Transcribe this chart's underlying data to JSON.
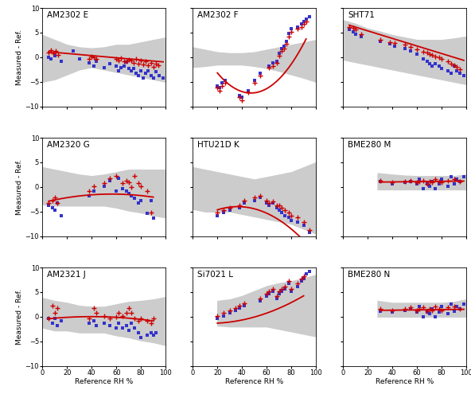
{
  "titles": [
    "AM2302 E",
    "AM2302 F",
    "SHT71",
    "AM2320 G",
    "HTU21D K",
    "BME280 M",
    "AM2321 J",
    "Si7021 L",
    "BME280 N"
  ],
  "xlabel": "Reference RH %",
  "ylabel": "Measured - Ref.",
  "ylim": [
    -10,
    10
  ],
  "xlim": [
    0,
    100
  ],
  "curve_color": "#cc0000",
  "scatter_red_color": "#cc0000",
  "scatter_blue_color": "#3333cc",
  "band_color": "#cccccc",
  "yticks": [
    -10,
    -5,
    0,
    5,
    10
  ],
  "xticks": [
    0,
    20,
    40,
    60,
    80,
    100
  ],
  "panels": [
    {
      "name": "AM2302 E",
      "curve_x0": 5,
      "curve_x1": 98,
      "curve_coeffs": [
        -0.022,
        1.2
      ],
      "band_x": [
        0,
        10,
        20,
        30,
        40,
        50,
        60,
        70,
        80,
        90,
        100
      ],
      "band_upper": [
        4.5,
        3.5,
        2.5,
        2.0,
        1.8,
        2.0,
        2.5,
        2.5,
        3.0,
        3.5,
        4.0
      ],
      "band_lower": [
        -5.0,
        -4.5,
        -3.5,
        -2.5,
        -2.0,
        -2.5,
        -3.0,
        -3.5,
        -4.0,
        -4.5,
        -5.0
      ],
      "red_x": [
        5,
        7,
        9,
        11,
        13,
        38,
        40,
        42,
        44,
        60,
        62,
        64,
        66,
        68,
        70,
        72,
        74,
        76,
        78,
        80,
        82,
        84,
        86,
        88,
        90,
        92,
        94
      ],
      "red_y": [
        1.0,
        1.5,
        0.8,
        1.2,
        0.5,
        -0.3,
        0.2,
        -0.1,
        -0.3,
        -0.4,
        -0.6,
        -0.2,
        -0.8,
        -0.9,
        -0.5,
        -0.7,
        -1.1,
        -0.4,
        -1.3,
        -0.7,
        -1.5,
        -0.8,
        -1.7,
        -1.1,
        -1.9,
        -1.4,
        -1.7
      ],
      "blue_x": [
        5,
        7,
        10,
        15,
        25,
        30,
        38,
        42,
        44,
        50,
        55,
        60,
        62,
        64,
        66,
        68,
        70,
        72,
        74,
        76,
        78,
        80,
        82,
        84,
        86,
        88,
        90,
        92,
        95,
        98
      ],
      "blue_y": [
        0.0,
        -0.3,
        0.3,
        -0.8,
        1.2,
        -0.4,
        -1.2,
        -1.8,
        -0.8,
        -2.2,
        -1.3,
        -1.8,
        -2.8,
        -2.2,
        -1.8,
        -1.0,
        -2.3,
        -2.7,
        -2.3,
        -3.2,
        -3.8,
        -2.8,
        -4.2,
        -3.2,
        -2.8,
        -3.8,
        -4.3,
        -2.9,
        -3.7,
        -4.3
      ]
    },
    {
      "name": "AM2302 F",
      "curve_x0": 20,
      "curve_x1": 92,
      "curve_coeffs": [
        0.0055,
        -0.52,
        5.0
      ],
      "band_x": [
        0,
        10,
        20,
        30,
        40,
        50,
        60,
        70,
        80,
        90,
        100
      ],
      "band_upper": [
        2.0,
        1.5,
        1.0,
        0.8,
        0.8,
        1.0,
        1.5,
        2.0,
        2.5,
        3.0,
        3.5
      ],
      "band_lower": [
        -2.0,
        -1.8,
        -1.5,
        -1.5,
        -1.5,
        -1.8,
        -2.2,
        -2.8,
        -3.5,
        -4.2,
        -5.0
      ],
      "red_x": [
        20,
        22,
        24,
        26,
        38,
        40,
        45,
        50,
        55,
        62,
        65,
        68,
        70,
        72,
        74,
        76,
        78,
        80,
        85,
        88,
        90,
        92
      ],
      "red_y": [
        -6.2,
        -6.8,
        -5.8,
        -5.2,
        -8.2,
        -8.8,
        -7.2,
        -5.2,
        -3.8,
        -2.2,
        -1.8,
        -1.2,
        0.3,
        1.3,
        1.8,
        2.8,
        4.2,
        5.2,
        5.8,
        6.2,
        6.8,
        7.2
      ],
      "blue_x": [
        20,
        22,
        24,
        26,
        38,
        40,
        45,
        50,
        55,
        62,
        65,
        68,
        70,
        72,
        74,
        76,
        78,
        80,
        85,
        88,
        90,
        92,
        95
      ],
      "blue_y": [
        -5.8,
        -6.2,
        -5.2,
        -4.8,
        -7.8,
        -8.2,
        -6.8,
        -4.8,
        -3.2,
        -1.8,
        -1.2,
        -0.8,
        0.8,
        1.8,
        2.2,
        3.2,
        4.8,
        5.8,
        6.2,
        6.8,
        7.2,
        7.8,
        8.2
      ]
    },
    {
      "name": "SHT71",
      "curve_x0": 5,
      "curve_x1": 98,
      "curve_coeffs": [
        -0.077,
        6.9
      ],
      "band_x": [
        0,
        10,
        20,
        30,
        40,
        50,
        60,
        70,
        80,
        90,
        100
      ],
      "band_upper": [
        7.5,
        6.8,
        5.8,
        5.2,
        4.5,
        4.0,
        3.5,
        3.5,
        3.5,
        3.8,
        4.2
      ],
      "band_lower": [
        -0.5,
        -1.0,
        -1.5,
        -2.0,
        -2.5,
        -3.0,
        -3.5,
        -4.0,
        -4.5,
        -5.0,
        -5.5
      ],
      "red_x": [
        5,
        8,
        10,
        15,
        30,
        38,
        42,
        50,
        55,
        60,
        65,
        68,
        70,
        72,
        75,
        78,
        80,
        85,
        88,
        90,
        92,
        95
      ],
      "red_y": [
        6.2,
        5.9,
        5.6,
        4.6,
        3.6,
        3.1,
        2.9,
        2.6,
        2.1,
        1.6,
        1.1,
        0.9,
        0.6,
        0.4,
        0.1,
        -0.1,
        -0.4,
        -0.9,
        -1.4,
        -1.7,
        -1.9,
        -2.4
      ],
      "blue_x": [
        5,
        8,
        10,
        15,
        30,
        38,
        42,
        50,
        55,
        60,
        65,
        68,
        70,
        72,
        75,
        78,
        80,
        85,
        88,
        90,
        92,
        95,
        98
      ],
      "blue_y": [
        5.7,
        5.2,
        4.7,
        4.2,
        3.2,
        2.7,
        2.2,
        1.7,
        1.2,
        0.7,
        -0.3,
        -0.8,
        -1.3,
        -1.8,
        -1.3,
        -1.8,
        -2.3,
        -2.8,
        -3.3,
        -1.8,
        -2.8,
        -3.3,
        -3.8
      ]
    },
    {
      "name": "AM2320 G",
      "curve_x0": 5,
      "curve_x1": 90,
      "curve_coeffs": [
        -0.00055,
        0.062,
        -3.2
      ],
      "band_x": [
        0,
        10,
        20,
        30,
        40,
        50,
        60,
        70,
        80,
        90,
        100
      ],
      "band_upper": [
        4.0,
        3.5,
        3.0,
        2.5,
        2.2,
        2.5,
        3.0,
        3.5,
        3.5,
        3.5,
        3.5
      ],
      "band_lower": [
        -3.5,
        -3.8,
        -3.8,
        -3.8,
        -3.8,
        -3.8,
        -4.2,
        -4.8,
        -5.2,
        -5.8,
        -6.2
      ],
      "red_x": [
        5,
        8,
        10,
        12,
        38,
        42,
        50,
        55,
        60,
        65,
        68,
        70,
        72,
        75,
        78,
        80,
        85,
        88
      ],
      "red_y": [
        -3.2,
        -2.8,
        -2.2,
        -3.2,
        -0.8,
        0.2,
        0.8,
        1.8,
        2.2,
        0.8,
        1.2,
        1.0,
        -0.1,
        2.2,
        0.8,
        0.2,
        -0.8,
        -5.2
      ],
      "blue_x": [
        5,
        8,
        10,
        12,
        15,
        38,
        42,
        50,
        55,
        60,
        62,
        65,
        68,
        70,
        72,
        75,
        78,
        80,
        85,
        88,
        90
      ],
      "blue_y": [
        -3.8,
        -4.2,
        -4.8,
        -3.2,
        -5.8,
        -1.8,
        -0.8,
        0.2,
        1.2,
        -0.8,
        1.8,
        -0.3,
        -0.8,
        -1.3,
        -1.8,
        -2.3,
        -3.3,
        -2.8,
        -5.3,
        -2.8,
        -6.3
      ]
    },
    {
      "name": "HTU21D K",
      "curve_x0": 20,
      "curve_x1": 95,
      "curve_coeffs": [
        -0.0024,
        0.175,
        -7.2
      ],
      "band_x": [
        0,
        10,
        20,
        30,
        40,
        50,
        60,
        70,
        80,
        90,
        100
      ],
      "band_upper": [
        4.0,
        3.5,
        3.0,
        2.5,
        2.0,
        1.5,
        2.0,
        2.5,
        3.0,
        4.0,
        5.0
      ],
      "band_lower": [
        -4.5,
        -5.0,
        -5.0,
        -5.0,
        -5.5,
        -6.0,
        -6.5,
        -7.0,
        -7.5,
        -8.5,
        -9.5
      ],
      "red_x": [
        20,
        25,
        30,
        38,
        42,
        50,
        55,
        60,
        62,
        65,
        68,
        70,
        72,
        75,
        78,
        80,
        85,
        90,
        95
      ],
      "red_y": [
        -5.2,
        -4.8,
        -4.2,
        -3.8,
        -2.8,
        -2.2,
        -1.8,
        -2.8,
        -3.2,
        -3.0,
        -3.8,
        -3.8,
        -4.2,
        -4.8,
        -5.2,
        -5.8,
        -6.2,
        -7.2,
        -8.8
      ],
      "blue_x": [
        20,
        25,
        30,
        38,
        42,
        50,
        55,
        60,
        62,
        65,
        68,
        70,
        72,
        75,
        78,
        80,
        85,
        90,
        95
      ],
      "blue_y": [
        -5.8,
        -5.2,
        -4.8,
        -4.2,
        -3.2,
        -2.8,
        -2.2,
        -3.2,
        -3.8,
        -3.2,
        -4.2,
        -4.8,
        -5.2,
        -5.8,
        -6.2,
        -6.8,
        -7.2,
        -7.8,
        -9.2
      ]
    },
    {
      "name": "BME280 M",
      "curve_x0": 30,
      "curve_x1": 98,
      "curve_coeffs": [
        0.003,
        0.9
      ],
      "band_x": [
        28,
        40,
        50,
        60,
        70,
        80,
        90,
        100
      ],
      "band_upper": [
        2.8,
        2.5,
        2.3,
        2.2,
        2.2,
        2.2,
        2.2,
        2.5
      ],
      "band_lower": [
        -0.5,
        -0.5,
        -0.5,
        -0.5,
        -0.5,
        -0.5,
        -0.5,
        -0.5
      ],
      "red_x": [
        30,
        40,
        50,
        55,
        60,
        62,
        65,
        68,
        70,
        72,
        75,
        78,
        80,
        85,
        90,
        95
      ],
      "red_y": [
        1.3,
        0.9,
        1.1,
        1.3,
        0.9,
        1.1,
        1.3,
        0.6,
        1.1,
        0.9,
        1.6,
        1.1,
        0.9,
        1.3,
        1.6,
        1.1
      ],
      "blue_x": [
        30,
        40,
        50,
        55,
        60,
        62,
        65,
        68,
        70,
        72,
        75,
        78,
        80,
        85,
        88,
        90,
        92,
        95,
        98
      ],
      "blue_y": [
        1.1,
        0.6,
        0.9,
        1.1,
        0.6,
        1.6,
        -0.4,
        0.6,
        0.1,
        1.1,
        -0.4,
        0.6,
        1.6,
        0.1,
        2.1,
        0.6,
        1.6,
        1.1,
        2.1
      ]
    },
    {
      "name": "AM2321 J",
      "curve_x0": 5,
      "curve_x1": 90,
      "curve_coeffs": [
        -0.00035,
        0.028,
        -0.55
      ],
      "band_x": [
        0,
        10,
        20,
        30,
        40,
        50,
        60,
        70,
        80,
        90,
        100
      ],
      "band_upper": [
        3.8,
        3.2,
        2.8,
        2.2,
        2.0,
        2.0,
        2.5,
        3.0,
        3.2,
        3.5,
        4.0
      ],
      "band_lower": [
        -2.2,
        -2.8,
        -2.8,
        -3.2,
        -3.2,
        -3.2,
        -3.8,
        -4.2,
        -4.8,
        -5.2,
        -5.8
      ],
      "red_x": [
        5,
        8,
        10,
        12,
        38,
        42,
        44,
        50,
        55,
        60,
        62,
        65,
        68,
        70,
        72,
        75,
        78,
        80,
        85,
        88,
        90
      ],
      "red_y": [
        -0.3,
        2.2,
        0.7,
        1.7,
        -0.3,
        1.7,
        0.7,
        0.2,
        -0.3,
        0.0,
        0.7,
        0.2,
        0.7,
        1.7,
        0.7,
        -0.3,
        -0.8,
        -0.3,
        -0.8,
        -1.3,
        -0.3
      ],
      "blue_x": [
        5,
        8,
        10,
        12,
        15,
        38,
        42,
        44,
        50,
        55,
        60,
        62,
        65,
        68,
        70,
        72,
        75,
        78,
        80,
        85,
        88,
        90,
        92
      ],
      "blue_y": [
        -0.3,
        -1.3,
        -0.3,
        -1.8,
        -0.8,
        -1.3,
        -0.8,
        -1.8,
        -1.3,
        -1.8,
        -2.3,
        -1.3,
        -2.3,
        -1.8,
        -2.8,
        -1.3,
        -2.3,
        -3.3,
        -4.3,
        -3.8,
        -3.3,
        -3.8,
        -3.3
      ]
    },
    {
      "name": "Si7021 L",
      "curve_x0": 20,
      "curve_x1": 90,
      "curve_coeffs": [
        0.00095,
        -0.025,
        -1.2
      ],
      "band_x": [
        20,
        30,
        40,
        50,
        60,
        70,
        80,
        90,
        100
      ],
      "band_upper": [
        3.2,
        3.5,
        4.2,
        5.2,
        6.2,
        6.8,
        7.2,
        7.8,
        8.5
      ],
      "band_lower": [
        -1.8,
        -2.0,
        -2.0,
        -2.0,
        -2.0,
        -2.5,
        -3.0,
        -3.5,
        -4.0
      ],
      "red_x": [
        20,
        25,
        30,
        35,
        38,
        42,
        55,
        60,
        62,
        65,
        68,
        70,
        72,
        75,
        78,
        80,
        85,
        88,
        90
      ],
      "red_y": [
        0.2,
        0.7,
        1.2,
        1.7,
        2.2,
        2.7,
        3.7,
        4.7,
        5.2,
        5.7,
        4.2,
        5.2,
        5.7,
        6.2,
        7.2,
        5.7,
        6.7,
        7.7,
        8.2
      ],
      "blue_x": [
        20,
        25,
        30,
        35,
        38,
        42,
        55,
        60,
        62,
        65,
        68,
        70,
        72,
        75,
        78,
        80,
        85,
        88,
        90,
        92,
        95
      ],
      "blue_y": [
        -0.3,
        0.2,
        0.7,
        1.2,
        1.7,
        2.2,
        3.2,
        4.2,
        4.7,
        5.2,
        3.7,
        4.7,
        5.2,
        5.7,
        6.7,
        5.2,
        6.2,
        7.2,
        7.7,
        8.7,
        9.2
      ]
    },
    {
      "name": "BME280 N",
      "curve_x0": 30,
      "curve_x1": 98,
      "curve_coeffs": [
        0.003,
        1.2
      ],
      "band_x": [
        28,
        40,
        50,
        60,
        70,
        80,
        90,
        100
      ],
      "band_upper": [
        3.2,
        2.8,
        2.8,
        2.8,
        2.8,
        2.8,
        3.0,
        3.5
      ],
      "band_lower": [
        0.0,
        0.0,
        0.0,
        0.0,
        0.0,
        0.0,
        0.0,
        0.0
      ],
      "red_x": [
        30,
        40,
        50,
        55,
        60,
        62,
        65,
        68,
        70,
        72,
        75,
        78,
        80,
        85,
        90,
        95
      ],
      "red_y": [
        1.6,
        1.3,
        1.6,
        1.9,
        1.3,
        1.6,
        1.9,
        1.1,
        1.6,
        1.3,
        2.1,
        1.6,
        1.3,
        1.9,
        2.1,
        1.6
      ],
      "blue_x": [
        30,
        40,
        50,
        55,
        60,
        62,
        65,
        68,
        70,
        72,
        75,
        78,
        80,
        85,
        88,
        90,
        92,
        95,
        98
      ],
      "blue_y": [
        1.1,
        0.9,
        1.3,
        1.6,
        0.9,
        2.1,
        -0.1,
        0.9,
        0.6,
        1.6,
        -0.1,
        0.9,
        2.1,
        0.6,
        2.6,
        1.1,
        2.1,
        1.6,
        2.6
      ]
    }
  ]
}
